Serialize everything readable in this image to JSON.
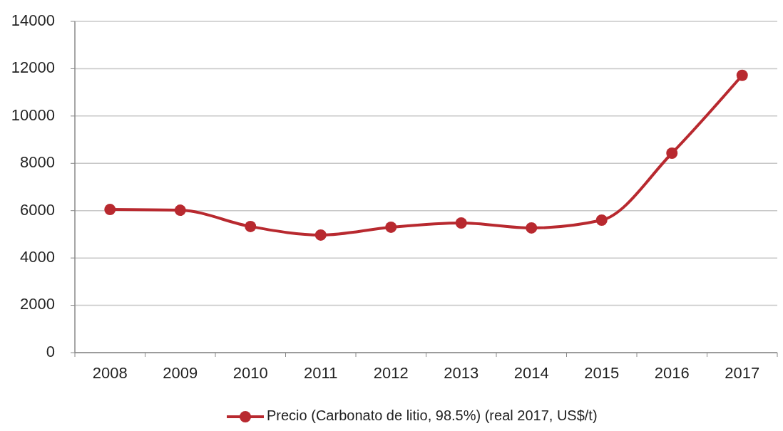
{
  "chart_data": {
    "type": "line",
    "categories": [
      "2008",
      "2009",
      "2010",
      "2011",
      "2012",
      "2013",
      "2014",
      "2015",
      "2016",
      "2017"
    ],
    "series": [
      {
        "name": "Precio (Carbonato de litio, 98.5%) (real 2017, US$/t)",
        "color": "#b8292f",
        "values": [
          6050,
          6020,
          5330,
          4970,
          5300,
          5480,
          5270,
          5600,
          8430,
          11720
        ]
      }
    ],
    "ylim": [
      0,
      14000
    ],
    "yticks": [
      0,
      2000,
      4000,
      6000,
      8000,
      10000,
      12000,
      14000
    ],
    "grid": "y",
    "legend": "bottom",
    "marker": "circle",
    "line_style": "solid"
  }
}
